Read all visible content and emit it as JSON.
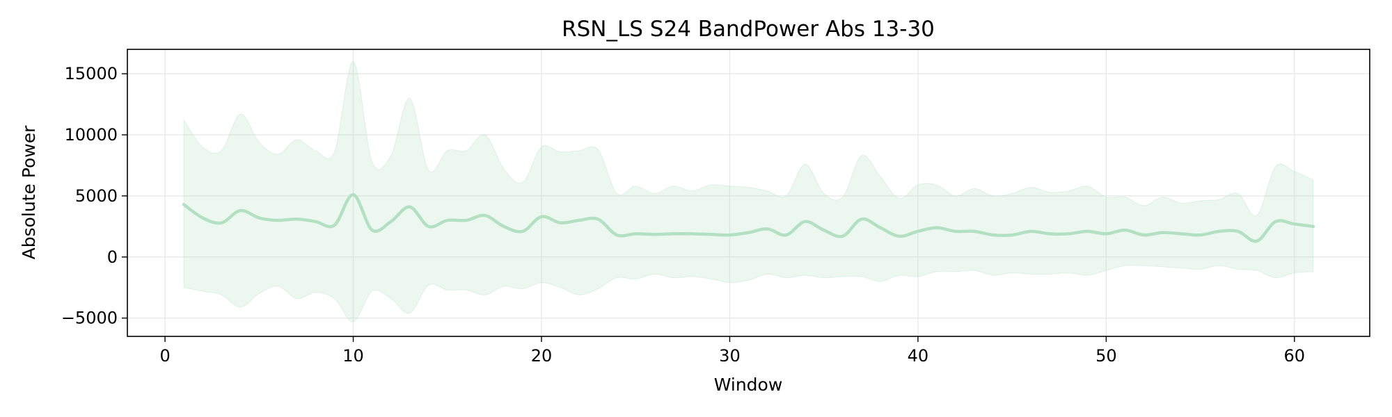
{
  "chart_data": {
    "type": "line",
    "title": "RSN_LS S24 BandPower Abs 13-30",
    "xlabel": "Window",
    "ylabel": "Absolute Power",
    "xlim": [
      -2,
      64
    ],
    "ylim": [
      -6500,
      17000
    ],
    "xticks": [
      0,
      10,
      20,
      30,
      40,
      50,
      60
    ],
    "yticks": [
      -5000,
      0,
      5000,
      10000,
      15000
    ],
    "xtick_labels": [
      "0",
      "10",
      "20",
      "30",
      "40",
      "50",
      "60"
    ],
    "ytick_labels": [
      "−5000",
      "0",
      "5000",
      "10000",
      "15000"
    ],
    "grid": true,
    "line_color": "#b3e0c3",
    "band_color": "#b3e0c3",
    "series": [
      {
        "x": [
          1,
          2,
          3,
          4,
          5,
          6,
          7,
          8,
          9,
          10,
          11,
          12,
          13,
          14,
          15,
          16,
          17,
          18,
          19,
          20,
          21,
          22,
          23,
          24,
          25,
          26,
          27,
          28,
          29,
          30,
          31,
          32,
          33,
          34,
          35,
          36,
          37,
          38,
          39,
          40,
          41,
          42,
          43,
          44,
          45,
          46,
          47,
          48,
          49,
          50,
          51,
          52,
          53,
          54,
          55,
          56,
          57,
          58,
          59,
          60,
          61
        ],
        "mean": [
          4300,
          3200,
          2800,
          3800,
          3200,
          3000,
          3100,
          2900,
          2600,
          5100,
          2200,
          2900,
          4100,
          2500,
          3000,
          3000,
          3400,
          2500,
          2100,
          3300,
          2800,
          3000,
          3100,
          1800,
          1900,
          1850,
          1900,
          1900,
          1850,
          1800,
          2000,
          2300,
          1800,
          2900,
          2200,
          1700,
          3100,
          2400,
          1700,
          2100,
          2400,
          2100,
          2100,
          1800,
          1800,
          2100,
          1900,
          1900,
          2100,
          1900,
          2200,
          1800,
          2000,
          1900,
          1800,
          2100,
          2100,
          1300,
          2900,
          2700,
          2500
        ],
        "upper": [
          11200,
          9000,
          8700,
          11700,
          9400,
          8400,
          9600,
          8700,
          8600,
          16000,
          7800,
          8300,
          13000,
          7100,
          8700,
          8700,
          10000,
          7200,
          6100,
          9000,
          8600,
          8700,
          8800,
          5200,
          5800,
          5200,
          5800,
          5400,
          5900,
          5800,
          5700,
          5400,
          5000,
          7600,
          5200,
          4900,
          8300,
          6600,
          4800,
          5900,
          5900,
          5000,
          5600,
          5000,
          5200,
          5700,
          5300,
          5400,
          5800,
          4900,
          4900,
          4200,
          4900,
          4400,
          4600,
          4700,
          5200,
          3400,
          7400,
          7000,
          6300
        ],
        "lower": [
          -2500,
          -2800,
          -3100,
          -4100,
          -3000,
          -2400,
          -3400,
          -2900,
          -3400,
          -5300,
          -2800,
          -3400,
          -4600,
          -2300,
          -2700,
          -2700,
          -3100,
          -2400,
          -2600,
          -2100,
          -2500,
          -3100,
          -2600,
          -1700,
          -1800,
          -1400,
          -1700,
          -1600,
          -1800,
          -2100,
          -1900,
          -1400,
          -1700,
          -1500,
          -1700,
          -1600,
          -1600,
          -2000,
          -1500,
          -1600,
          -1200,
          -1200,
          -1100,
          -1500,
          -1300,
          -1400,
          -1400,
          -1300,
          -1500,
          -1100,
          -700,
          -700,
          -800,
          -900,
          -1000,
          -700,
          -1000,
          -1100,
          -1700,
          -1300,
          -1200
        ]
      }
    ]
  }
}
